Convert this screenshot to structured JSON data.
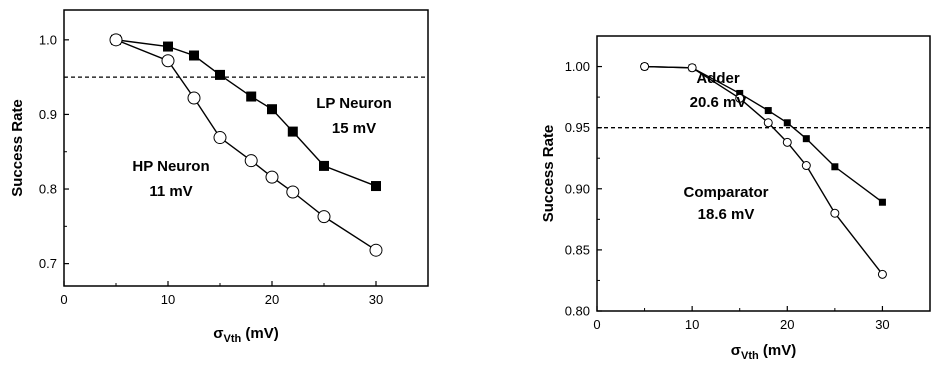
{
  "chart_data": [
    {
      "type": "line",
      "title": "",
      "xlabel": "σ",
      "xlabel_sub": "Vth",
      "xlabel_unit": " (mV)",
      "ylabel": "Success Rate",
      "xlim": [
        0,
        35
      ],
      "ylim": [
        0.67,
        1.04
      ],
      "xticks": [
        "0",
        "10",
        "20",
        "30"
      ],
      "yticks": [
        "0.7",
        "0.8",
        "0.9",
        "1.0"
      ],
      "threshold": 0.95,
      "grid": false,
      "series": [
        {
          "name": "LP Neuron",
          "marker": "filled-square",
          "x": [
            5,
            10,
            12.5,
            15,
            18,
            20,
            22,
            25,
            30
          ],
          "y": [
            1.0,
            0.991,
            0.979,
            0.953,
            0.924,
            0.907,
            0.877,
            0.831,
            0.804
          ]
        },
        {
          "name": "HP Neuron",
          "marker": "open-circle",
          "x": [
            5,
            10,
            12.5,
            15,
            18,
            20,
            22,
            25,
            30
          ],
          "y": [
            1.0,
            0.972,
            0.922,
            0.869,
            0.838,
            0.816,
            0.796,
            0.763,
            0.718
          ]
        }
      ],
      "annotations": [
        {
          "line1": "LP Neuron",
          "line2": "15 mV"
        },
        {
          "line1": "HP Neuron",
          "line2": "11 mV"
        }
      ]
    },
    {
      "type": "line",
      "title": "",
      "xlabel": "σ",
      "xlabel_sub": "Vth",
      "xlabel_unit": " (mV)",
      "ylabel": "Success Rate",
      "xlim": [
        0,
        35
      ],
      "ylim": [
        0.8,
        1.025
      ],
      "xticks": [
        "0",
        "10",
        "20",
        "30"
      ],
      "yticks": [
        "0.80",
        "0.85",
        "0.90",
        "0.95",
        "1.00"
      ],
      "threshold": 0.95,
      "grid": false,
      "series": [
        {
          "name": "Adder",
          "marker": "filled-square",
          "x": [
            5,
            10,
            15,
            18,
            20,
            22,
            25,
            30
          ],
          "y": [
            1.0,
            0.999,
            0.978,
            0.964,
            0.954,
            0.941,
            0.918,
            0.889
          ]
        },
        {
          "name": "Comparator",
          "marker": "open-circle",
          "x": [
            5,
            10,
            15,
            18,
            20,
            22,
            25,
            30
          ],
          "y": [
            1.0,
            0.999,
            0.974,
            0.954,
            0.938,
            0.919,
            0.88,
            0.83
          ]
        }
      ],
      "annotations": [
        {
          "line1": "Adder",
          "line2": "20.6 mV"
        },
        {
          "line1": "Comparator",
          "line2": "18.6 mV"
        }
      ]
    }
  ]
}
